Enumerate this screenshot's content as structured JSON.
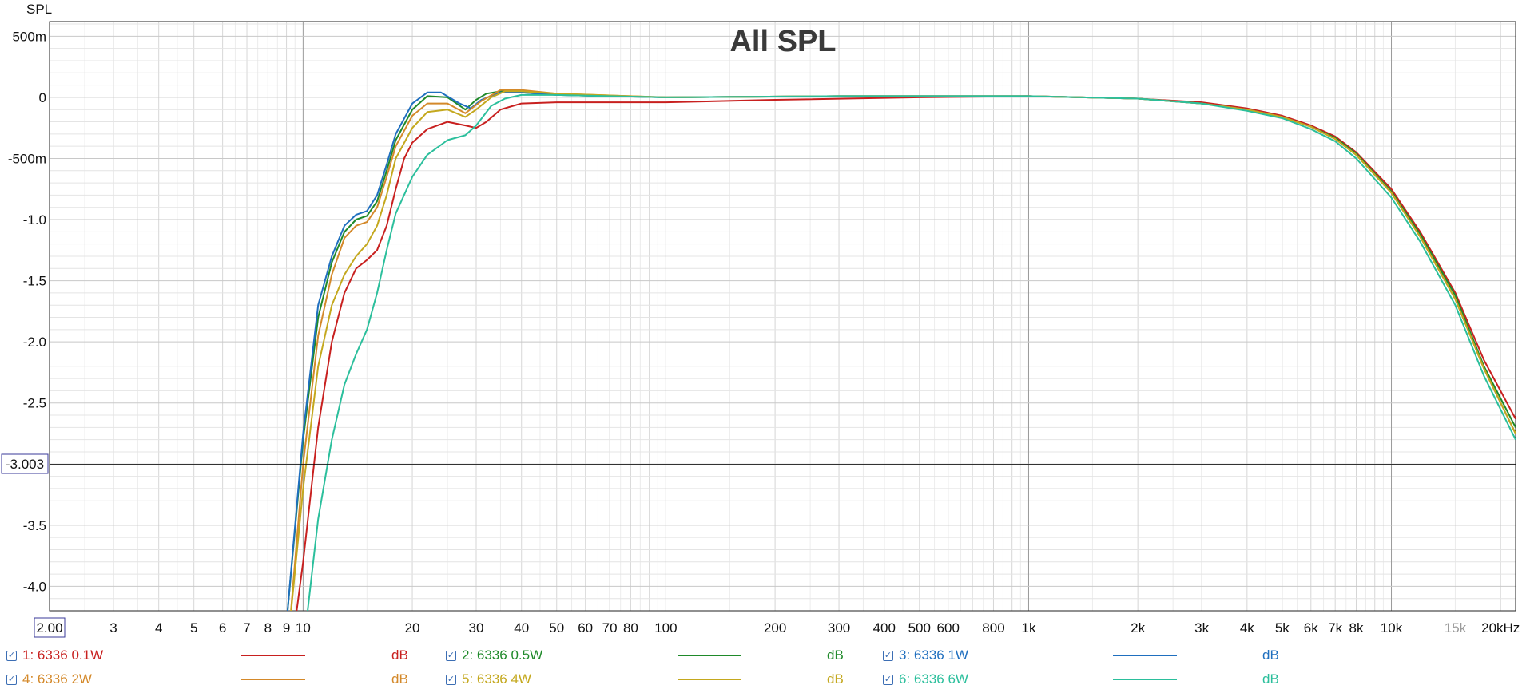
{
  "chart_data": {
    "type": "line",
    "title": "All SPL",
    "ylabel": "SPL",
    "xscale": "log",
    "xlim": [
      2,
      22000
    ],
    "ylim": [
      -4.2,
      0.62
    ],
    "grid": true,
    "y_ticks": [
      {
        "value": 0.5,
        "label": "500m"
      },
      {
        "value": 0,
        "label": "0"
      },
      {
        "value": -0.5,
        "label": "-500m"
      },
      {
        "value": -1.0,
        "label": "-1.0"
      },
      {
        "value": -1.5,
        "label": "-1.5"
      },
      {
        "value": -2.0,
        "label": "-2.0"
      },
      {
        "value": -2.5,
        "label": "-2.5"
      },
      {
        "value": -3.5,
        "label": "-3.5"
      },
      {
        "value": -4.0,
        "label": "-4.0"
      }
    ],
    "x_ticks": [
      {
        "value": 3,
        "label": "3"
      },
      {
        "value": 4,
        "label": "4"
      },
      {
        "value": 5,
        "label": "5"
      },
      {
        "value": 6,
        "label": "6"
      },
      {
        "value": 7,
        "label": "7"
      },
      {
        "value": 8,
        "label": "8"
      },
      {
        "value": 9,
        "label": "9"
      },
      {
        "value": 10,
        "label": "10"
      },
      {
        "value": 20,
        "label": "20"
      },
      {
        "value": 30,
        "label": "30"
      },
      {
        "value": 40,
        "label": "40"
      },
      {
        "value": 50,
        "label": "50"
      },
      {
        "value": 60,
        "label": "60"
      },
      {
        "value": 70,
        "label": "70"
      },
      {
        "value": 80,
        "label": "80"
      },
      {
        "value": 100,
        "label": "100"
      },
      {
        "value": 200,
        "label": "200"
      },
      {
        "value": 300,
        "label": "300"
      },
      {
        "value": 400,
        "label": "400"
      },
      {
        "value": 500,
        "label": "500"
      },
      {
        "value": 600,
        "label": "600"
      },
      {
        "value": 800,
        "label": "800"
      },
      {
        "value": 1000,
        "label": "1k"
      },
      {
        "value": 2000,
        "label": "2k"
      },
      {
        "value": 3000,
        "label": "3k"
      },
      {
        "value": 4000,
        "label": "4k"
      },
      {
        "value": 5000,
        "label": "5k"
      },
      {
        "value": 6000,
        "label": "6k"
      },
      {
        "value": 7000,
        "label": "7k"
      },
      {
        "value": 8000,
        "label": "8k"
      },
      {
        "value": 10000,
        "label": "10k"
      },
      {
        "value": 15000,
        "label": "15k",
        "faint": true
      },
      {
        "value": 20000,
        "label": "20kHz"
      }
    ],
    "cursor": {
      "x_label": "2.00",
      "y_value": -3.003,
      "y_label": "-3.003"
    },
    "series": [
      {
        "name": "1: 6336 0.1W",
        "color": "#c8201f",
        "points": [
          [
            9.5,
            -4.3
          ],
          [
            10,
            -3.8
          ],
          [
            11,
            -2.7
          ],
          [
            12,
            -2.0
          ],
          [
            13,
            -1.6
          ],
          [
            14,
            -1.4
          ],
          [
            15,
            -1.33
          ],
          [
            16,
            -1.25
          ],
          [
            17,
            -1.05
          ],
          [
            18,
            -0.75
          ],
          [
            19,
            -0.5
          ],
          [
            20,
            -0.37
          ],
          [
            22,
            -0.26
          ],
          [
            25,
            -0.2
          ],
          [
            28,
            -0.23
          ],
          [
            30,
            -0.25
          ],
          [
            32,
            -0.2
          ],
          [
            35,
            -0.1
          ],
          [
            40,
            -0.05
          ],
          [
            50,
            -0.04
          ],
          [
            100,
            -0.04
          ],
          [
            200,
            -0.02
          ],
          [
            500,
            0.0
          ],
          [
            1000,
            0.01
          ],
          [
            2000,
            -0.01
          ],
          [
            3000,
            -0.04
          ],
          [
            4000,
            -0.09
          ],
          [
            5000,
            -0.15
          ],
          [
            6000,
            -0.23
          ],
          [
            7000,
            -0.32
          ],
          [
            8000,
            -0.45
          ],
          [
            10000,
            -0.75
          ],
          [
            12000,
            -1.1
          ],
          [
            15000,
            -1.6
          ],
          [
            18000,
            -2.15
          ],
          [
            22000,
            -2.63
          ]
        ]
      },
      {
        "name": "2: 6336 0.5W",
        "color": "#1f8a2a",
        "points": [
          [
            9,
            -4.3
          ],
          [
            10,
            -2.8
          ],
          [
            11,
            -1.8
          ],
          [
            12,
            -1.35
          ],
          [
            13,
            -1.1
          ],
          [
            14,
            -1.0
          ],
          [
            15,
            -0.97
          ],
          [
            16,
            -0.85
          ],
          [
            17,
            -0.6
          ],
          [
            18,
            -0.35
          ],
          [
            20,
            -0.1
          ],
          [
            22,
            0.01
          ],
          [
            25,
            0.0
          ],
          [
            28,
            -0.1
          ],
          [
            30,
            -0.02
          ],
          [
            32,
            0.03
          ],
          [
            35,
            0.05
          ],
          [
            40,
            0.04
          ],
          [
            50,
            0.02
          ],
          [
            100,
            0.0
          ],
          [
            300,
            0.01
          ],
          [
            1000,
            0.01
          ],
          [
            2000,
            -0.01
          ],
          [
            3000,
            -0.05
          ],
          [
            4000,
            -0.1
          ],
          [
            5000,
            -0.16
          ],
          [
            6000,
            -0.24
          ],
          [
            7000,
            -0.33
          ],
          [
            8000,
            -0.46
          ],
          [
            10000,
            -0.77
          ],
          [
            12000,
            -1.12
          ],
          [
            15000,
            -1.62
          ],
          [
            18000,
            -2.2
          ],
          [
            22000,
            -2.7
          ]
        ]
      },
      {
        "name": "3: 6336 1W",
        "color": "#1f6fbf",
        "points": [
          [
            9,
            -4.3
          ],
          [
            10,
            -2.75
          ],
          [
            11,
            -1.7
          ],
          [
            12,
            -1.3
          ],
          [
            13,
            -1.05
          ],
          [
            14,
            -0.96
          ],
          [
            15,
            -0.93
          ],
          [
            16,
            -0.8
          ],
          [
            17,
            -0.55
          ],
          [
            18,
            -0.3
          ],
          [
            20,
            -0.05
          ],
          [
            22,
            0.04
          ],
          [
            24,
            0.04
          ],
          [
            27,
            -0.05
          ],
          [
            29,
            -0.09
          ],
          [
            31,
            -0.02
          ],
          [
            35,
            0.04
          ],
          [
            40,
            0.04
          ],
          [
            50,
            0.02
          ],
          [
            100,
            0.0
          ],
          [
            300,
            0.01
          ],
          [
            1000,
            0.01
          ],
          [
            2000,
            -0.01
          ],
          [
            3000,
            -0.05
          ],
          [
            4000,
            -0.1
          ],
          [
            5000,
            -0.16
          ],
          [
            6000,
            -0.24
          ],
          [
            7000,
            -0.34
          ],
          [
            8000,
            -0.47
          ],
          [
            10000,
            -0.78
          ],
          [
            12000,
            -1.14
          ],
          [
            15000,
            -1.65
          ],
          [
            18000,
            -2.22
          ],
          [
            22000,
            -2.75
          ]
        ]
      },
      {
        "name": "4: 6336 2W",
        "color": "#d4892a",
        "points": [
          [
            9.2,
            -4.3
          ],
          [
            10,
            -3.0
          ],
          [
            11,
            -1.95
          ],
          [
            12,
            -1.45
          ],
          [
            13,
            -1.15
          ],
          [
            14,
            -1.05
          ],
          [
            15,
            -1.02
          ],
          [
            16,
            -0.9
          ],
          [
            17,
            -0.65
          ],
          [
            18,
            -0.4
          ],
          [
            20,
            -0.15
          ],
          [
            22,
            -0.05
          ],
          [
            25,
            -0.05
          ],
          [
            28,
            -0.13
          ],
          [
            31,
            -0.03
          ],
          [
            35,
            0.06
          ],
          [
            40,
            0.06
          ],
          [
            50,
            0.03
          ],
          [
            100,
            0.0
          ],
          [
            300,
            0.01
          ],
          [
            1000,
            0.01
          ],
          [
            2000,
            -0.01
          ],
          [
            3000,
            -0.05
          ],
          [
            4000,
            -0.1
          ],
          [
            5000,
            -0.16
          ],
          [
            6000,
            -0.24
          ],
          [
            7000,
            -0.34
          ],
          [
            8000,
            -0.47
          ],
          [
            10000,
            -0.78
          ],
          [
            12000,
            -1.14
          ],
          [
            15000,
            -1.65
          ],
          [
            18000,
            -2.22
          ],
          [
            22000,
            -2.75
          ]
        ]
      },
      {
        "name": "5: 6336 4W",
        "color": "#c4a81e",
        "points": [
          [
            9.2,
            -4.3
          ],
          [
            10,
            -3.2
          ],
          [
            11,
            -2.2
          ],
          [
            12,
            -1.7
          ],
          [
            13,
            -1.45
          ],
          [
            14,
            -1.3
          ],
          [
            15,
            -1.2
          ],
          [
            16,
            -1.05
          ],
          [
            17,
            -0.8
          ],
          [
            18,
            -0.5
          ],
          [
            20,
            -0.25
          ],
          [
            22,
            -0.12
          ],
          [
            25,
            -0.1
          ],
          [
            28,
            -0.16
          ],
          [
            30,
            -0.1
          ],
          [
            33,
            0.0
          ],
          [
            36,
            0.05
          ],
          [
            40,
            0.05
          ],
          [
            50,
            0.03
          ],
          [
            100,
            0.0
          ],
          [
            300,
            0.01
          ],
          [
            1000,
            0.01
          ],
          [
            2000,
            -0.01
          ],
          [
            3000,
            -0.05
          ],
          [
            4000,
            -0.1
          ],
          [
            5000,
            -0.16
          ],
          [
            6000,
            -0.24
          ],
          [
            7000,
            -0.34
          ],
          [
            8000,
            -0.47
          ],
          [
            10000,
            -0.78
          ],
          [
            12000,
            -1.14
          ],
          [
            15000,
            -1.65
          ],
          [
            18000,
            -2.22
          ],
          [
            22000,
            -2.75
          ]
        ]
      },
      {
        "name": "6: 6336 6W",
        "color": "#2bbf9c",
        "points": [
          [
            10.2,
            -4.3
          ],
          [
            11,
            -3.45
          ],
          [
            12,
            -2.8
          ],
          [
            13,
            -2.35
          ],
          [
            14,
            -2.1
          ],
          [
            15,
            -1.9
          ],
          [
            16,
            -1.6
          ],
          [
            17,
            -1.25
          ],
          [
            18,
            -0.95
          ],
          [
            20,
            -0.65
          ],
          [
            22,
            -0.47
          ],
          [
            25,
            -0.35
          ],
          [
            28,
            -0.31
          ],
          [
            30,
            -0.23
          ],
          [
            33,
            -0.07
          ],
          [
            36,
            -0.01
          ],
          [
            40,
            0.02
          ],
          [
            50,
            0.02
          ],
          [
            100,
            0.0
          ],
          [
            300,
            0.01
          ],
          [
            1000,
            0.01
          ],
          [
            2000,
            -0.01
          ],
          [
            3000,
            -0.05
          ],
          [
            4000,
            -0.11
          ],
          [
            5000,
            -0.17
          ],
          [
            6000,
            -0.26
          ],
          [
            7000,
            -0.36
          ],
          [
            8000,
            -0.5
          ],
          [
            10000,
            -0.82
          ],
          [
            12000,
            -1.18
          ],
          [
            15000,
            -1.7
          ],
          [
            18000,
            -2.28
          ],
          [
            22000,
            -2.8
          ]
        ]
      }
    ]
  },
  "legend": [
    {
      "label": "1: 6336 0.1W",
      "unit": "dB",
      "color": "#c8201f",
      "checked": true
    },
    {
      "label": "2: 6336 0.5W",
      "unit": "dB",
      "color": "#1f8a2a",
      "checked": true
    },
    {
      "label": "3: 6336 1W",
      "unit": "dB",
      "color": "#1f6fbf",
      "checked": true
    },
    {
      "label": "4: 6336 2W",
      "unit": "dB",
      "color": "#d4892a",
      "checked": true
    },
    {
      "label": "5: 6336 4W",
      "unit": "dB",
      "color": "#c4a81e",
      "checked": true
    },
    {
      "label": "6: 6336 6W",
      "unit": "dB",
      "color": "#2bbf9c",
      "checked": true
    }
  ]
}
